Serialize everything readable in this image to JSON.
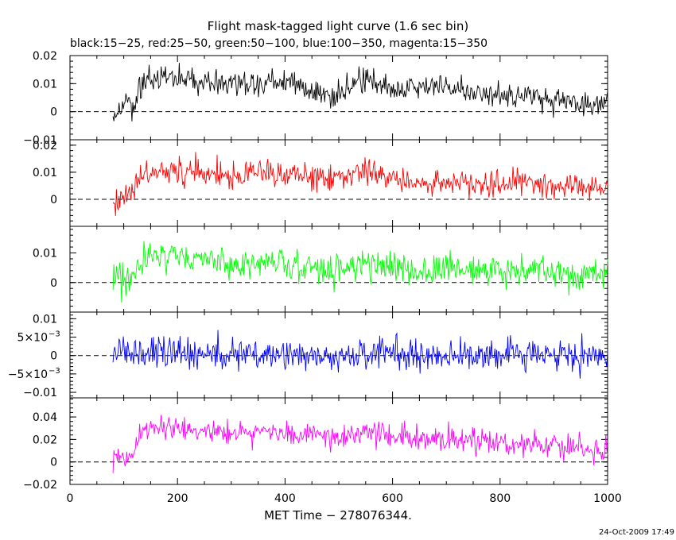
{
  "chart_data": {
    "type": "line",
    "title": "Flight mask-tagged light curve (1.6 sec bin)",
    "subtitle": "black:15−25, red:25−50, green:50−100, blue:100−350, magenta:15−350",
    "xlabel": "MET Time − 278076344.",
    "xlim": [
      0,
      1000
    ],
    "x_ticks": [
      "0",
      "200",
      "400",
      "600",
      "800",
      "1000"
    ],
    "timestamp": "24-Oct-2009 17:49",
    "series": [
      {
        "color": "#000000",
        "ylim": [
          -0.01,
          0.02
        ],
        "y_ticks": [
          {
            "value": 0.02,
            "label": "0.02"
          },
          {
            "value": 0.01,
            "label": "0.01"
          },
          {
            "value": 0,
            "label": "0"
          },
          {
            "value": -0.01,
            "label": "−0.01"
          }
        ],
        "x": [
          80,
          100,
          120,
          130,
          150,
          200,
          250,
          300,
          350,
          400,
          450,
          500,
          550,
          600,
          650,
          700,
          750,
          800,
          850,
          900,
          950,
          1000
        ],
        "y": [
          -0.002,
          0.003,
          0.001,
          0.009,
          0.012,
          0.012,
          0.011,
          0.01,
          0.01,
          0.011,
          0.007,
          0.006,
          0.012,
          0.008,
          0.009,
          0.009,
          0.007,
          0.006,
          0.006,
          0.004,
          0.003,
          0.003
        ],
        "noise": 0.004,
        "spike_min": -0.007,
        "spike_max": 0.02
      },
      {
        "color": "#ff0000",
        "ylim": [
          -0.01,
          0.022
        ],
        "y_ticks": [
          {
            "value": 0.02,
            "label": "0.02"
          },
          {
            "value": 0.01,
            "label": "0.01"
          },
          {
            "value": 0,
            "label": "0"
          }
        ],
        "x": [
          80,
          100,
          120,
          130,
          150,
          200,
          250,
          300,
          350,
          400,
          450,
          500,
          550,
          600,
          650,
          700,
          750,
          800,
          850,
          900,
          950,
          1000
        ],
        "y": [
          0.001,
          0.0,
          0.003,
          0.009,
          0.011,
          0.011,
          0.01,
          0.009,
          0.01,
          0.009,
          0.008,
          0.008,
          0.01,
          0.008,
          0.007,
          0.007,
          0.006,
          0.006,
          0.007,
          0.005,
          0.004,
          0.004
        ],
        "noise": 0.0045,
        "spike_min": -0.009,
        "spike_max": 0.021
      },
      {
        "color": "#00ff00",
        "ylim": [
          -0.01,
          0.019
        ],
        "y_ticks": [
          {
            "value": 0.01,
            "label": "0.01"
          },
          {
            "value": 0,
            "label": "0"
          }
        ],
        "x": [
          80,
          100,
          120,
          130,
          150,
          200,
          250,
          300,
          350,
          400,
          450,
          500,
          550,
          600,
          650,
          700,
          750,
          800,
          850,
          900,
          950,
          1000
        ],
        "y": [
          0.002,
          0.001,
          0.002,
          0.008,
          0.01,
          0.009,
          0.008,
          0.006,
          0.007,
          0.006,
          0.005,
          0.004,
          0.006,
          0.005,
          0.004,
          0.005,
          0.004,
          0.004,
          0.004,
          0.003,
          0.003,
          0.003
        ],
        "noise": 0.0045,
        "spike_min": -0.009,
        "spike_max": 0.018
      },
      {
        "color": "#0000ff",
        "ylim": [
          -0.0115,
          0.0118
        ],
        "y_ticks": [
          {
            "value": 0.01,
            "label": "0.01"
          },
          {
            "value": 0.005,
            "label": "5×10",
            "sup": "−3"
          },
          {
            "value": 0,
            "label": "0"
          },
          {
            "value": -0.005,
            "label": "−5×10",
            "sup": "−3"
          },
          {
            "value": -0.01,
            "label": "−0.01"
          }
        ],
        "x": [
          80,
          100,
          150,
          200,
          250,
          300,
          350,
          400,
          450,
          500,
          550,
          600,
          650,
          700,
          750,
          800,
          850,
          900,
          950,
          1000
        ],
        "y": [
          0.001,
          0.001,
          0.001,
          0.001,
          0.0005,
          0.0,
          0.0005,
          0.0,
          0.0,
          0.0,
          0.0005,
          0.0,
          0.0,
          0.0,
          0.0,
          0.0,
          0.0005,
          0.0,
          0.0,
          0.0
        ],
        "noise": 0.0038,
        "spike_min": -0.0114,
        "spike_max": 0.0117
      },
      {
        "color": "#ff00ff",
        "ylim": [
          -0.02,
          0.057
        ],
        "y_ticks": [
          {
            "value": 0.04,
            "label": "0.04"
          },
          {
            "value": 0.02,
            "label": "0.02"
          },
          {
            "value": 0,
            "label": "0"
          },
          {
            "value": -0.02,
            "label": "−0.02"
          }
        ],
        "x": [
          80,
          100,
          120,
          130,
          150,
          200,
          250,
          300,
          350,
          400,
          450,
          500,
          550,
          600,
          650,
          700,
          750,
          800,
          850,
          900,
          950,
          1000
        ],
        "y": [
          0.003,
          0.002,
          0.004,
          0.028,
          0.032,
          0.03,
          0.028,
          0.026,
          0.027,
          0.026,
          0.024,
          0.022,
          0.027,
          0.022,
          0.02,
          0.02,
          0.018,
          0.017,
          0.016,
          0.014,
          0.012,
          0.011
        ],
        "noise": 0.01,
        "spike_min": -0.019,
        "spike_max": 0.054
      }
    ]
  }
}
